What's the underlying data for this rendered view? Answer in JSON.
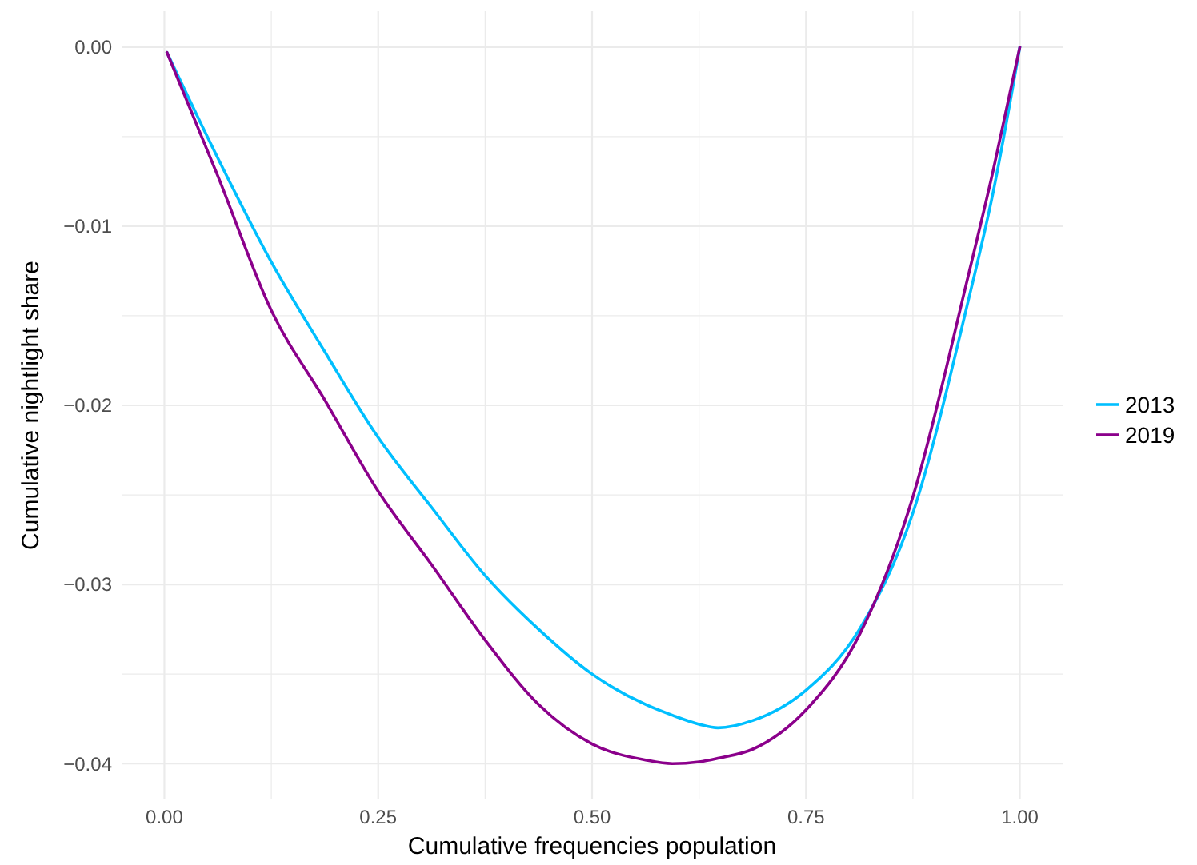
{
  "chart_data": {
    "type": "line",
    "xlabel": "Cumulative frequencies population",
    "ylabel": "Cumulative nightlight share",
    "xlim": [
      -0.05,
      1.05
    ],
    "ylim": [
      -0.042,
      0.002
    ],
    "xticks": [
      {
        "value": 0,
        "label": "0.00"
      },
      {
        "value": 0.125,
        "label": null
      },
      {
        "value": 0.25,
        "label": "0.25"
      },
      {
        "value": 0.375,
        "label": null
      },
      {
        "value": 0.5,
        "label": "0.50"
      },
      {
        "value": 0.625,
        "label": null
      },
      {
        "value": 0.75,
        "label": "0.75"
      },
      {
        "value": 0.875,
        "label": null
      },
      {
        "value": 1,
        "label": "1.00"
      }
    ],
    "yticks": [
      {
        "value": 0,
        "label": "0.00"
      },
      {
        "value": -0.005,
        "label": null
      },
      {
        "value": -0.01,
        "label": "−0.01"
      },
      {
        "value": -0.015,
        "label": null
      },
      {
        "value": -0.02,
        "label": "−0.02"
      },
      {
        "value": -0.025,
        "label": null
      },
      {
        "value": -0.03,
        "label": "−0.03"
      },
      {
        "value": -0.035,
        "label": null
      },
      {
        "value": -0.04,
        "label": "−0.04"
      }
    ],
    "grid": true,
    "legend": "right",
    "marker": "none",
    "line_style": "solid",
    "x": [
      0.003,
      0.0625,
      0.125,
      0.1875,
      0.25,
      0.3125,
      0.375,
      0.4375,
      0.5,
      0.5625,
      0.5938,
      0.625,
      0.647,
      0.6875,
      0.75,
      0.8125,
      0.875,
      0.9375,
      0.9688,
      1.0
    ],
    "series": [
      {
        "name": "2013",
        "color": "#00bfff",
        "values": [
          -0.0003,
          -0.0062,
          -0.012,
          -0.017,
          -0.0218,
          -0.0257,
          -0.0295,
          -0.0325,
          -0.035,
          -0.0367,
          -0.0373,
          -0.0378,
          -0.038,
          -0.0376,
          -0.0359,
          -0.0325,
          -0.026,
          -0.0146,
          -0.0081,
          0
        ]
      },
      {
        "name": "2019",
        "color": "#8b008b",
        "values": [
          -0.0003,
          -0.0072,
          -0.0147,
          -0.0197,
          -0.0248,
          -0.0289,
          -0.0331,
          -0.0367,
          -0.0389,
          -0.0398,
          -0.04,
          -0.0399,
          -0.0397,
          -0.0392,
          -0.037,
          -0.0328,
          -0.0251,
          -0.0132,
          -0.0069,
          0
        ]
      }
    ]
  }
}
